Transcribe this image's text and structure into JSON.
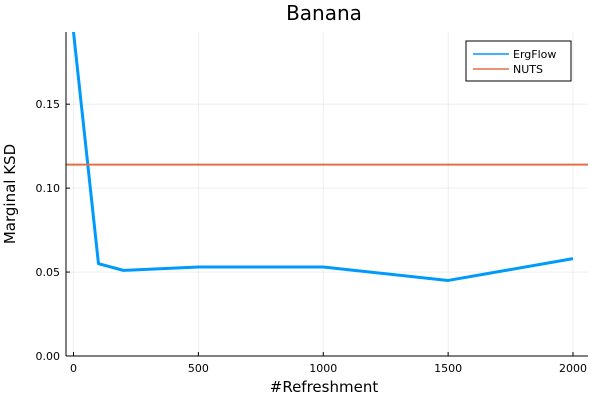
{
  "chart_data": {
    "type": "line",
    "title": "Banana",
    "xlabel": "#Refreshment",
    "ylabel": "Marginal KSD",
    "xlim": [
      -30,
      2060
    ],
    "ylim": [
      0,
      0.193
    ],
    "x_ticks": [
      0,
      500,
      1000,
      1500,
      2000
    ],
    "y_ticks": [
      0.0,
      0.05,
      0.1,
      0.15
    ],
    "x_tick_labels": [
      "0",
      "500",
      "1000",
      "1500",
      "2000"
    ],
    "y_tick_labels": [
      "0.00",
      "0.05",
      "0.10",
      "0.15"
    ],
    "grid": true,
    "legend_position": "top-right",
    "series": [
      {
        "name": "ErgFlow",
        "color": "#009AFA",
        "x": [
          0,
          100,
          200,
          500,
          1000,
          1500,
          2000
        ],
        "y": [
          0.193,
          0.055,
          0.051,
          0.053,
          0.053,
          0.045,
          0.058
        ]
      },
      {
        "name": "NUTS",
        "color": "#E26F46",
        "x": [
          -30,
          2060
        ],
        "y": [
          0.114,
          0.114
        ]
      }
    ]
  }
}
